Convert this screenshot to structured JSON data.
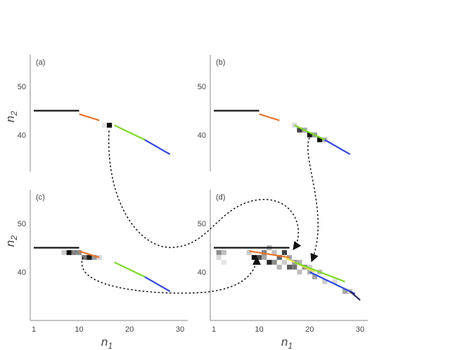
{
  "colors": {
    "black_segment": "#111111",
    "orange_segment": "#e8742a",
    "lime_segment": "#7fd82b",
    "blue_segment": "#2f48d8",
    "navy_segment": "#25255a",
    "yellow_segment": "#e8e050",
    "axis": "#888888",
    "text": "#444444"
  },
  "axis_titles": {
    "y": "n2",
    "x": "n1"
  },
  "chart_data": [
    {
      "id": "a",
      "label": "(a)",
      "type": "line",
      "xlim": [
        0,
        32
      ],
      "ylim": [
        34,
        57
      ],
      "xticks": [],
      "yticks": [
        {
          "value": 50,
          "label": "50"
        },
        {
          "value": 40,
          "label": "40"
        }
      ],
      "series": [
        {
          "color": "black",
          "x": [
            1,
            10
          ],
          "y": [
            45,
            45
          ]
        },
        {
          "color": "orange",
          "x": [
            10,
            14
          ],
          "y": [
            44.3,
            43
          ]
        },
        {
          "color": "lime",
          "x": [
            17,
            23
          ],
          "y": [
            42,
            39
          ]
        },
        {
          "color": "blue",
          "x": [
            23,
            28
          ],
          "y": [
            39,
            36
          ]
        }
      ],
      "cells": [
        {
          "x": 16,
          "y": 42,
          "shade": 0.95
        },
        {
          "x": 15,
          "y": 42,
          "shade": 0.1
        }
      ]
    },
    {
      "id": "b",
      "label": "(b)",
      "type": "line",
      "xlim": [
        0,
        32
      ],
      "ylim": [
        34,
        57
      ],
      "xticks": [],
      "yticks": [
        {
          "value": 50,
          "label": "50"
        },
        {
          "value": 40,
          "label": "40"
        }
      ],
      "series": [
        {
          "color": "black",
          "x": [
            1,
            10
          ],
          "y": [
            45,
            45
          ]
        },
        {
          "color": "orange",
          "x": [
            10,
            14
          ],
          "y": [
            44.3,
            43
          ]
        },
        {
          "color": "lime",
          "x": [
            17,
            23
          ],
          "y": [
            42,
            39
          ]
        },
        {
          "color": "blue",
          "x": [
            23,
            28
          ],
          "y": [
            39,
            36
          ]
        }
      ],
      "cells": [
        {
          "x": 17,
          "y": 42,
          "shade": 0.15
        },
        {
          "x": 18,
          "y": 41,
          "shade": 0.75
        },
        {
          "x": 19,
          "y": 41,
          "shade": 0.35
        },
        {
          "x": 20,
          "y": 40,
          "shade": 0.9
        },
        {
          "x": 21,
          "y": 40,
          "shade": 0.4
        },
        {
          "x": 22,
          "y": 39,
          "shade": 0.95
        },
        {
          "x": 23,
          "y": 39,
          "shade": 0.3
        }
      ]
    },
    {
      "id": "c",
      "label": "(c)",
      "type": "line",
      "xlim": [
        0,
        32
      ],
      "ylim": [
        34,
        57
      ],
      "xticks": [
        {
          "value": 1,
          "label": "1"
        },
        {
          "value": 10,
          "label": "10"
        },
        {
          "value": 20,
          "label": "20"
        },
        {
          "value": 30,
          "label": "30"
        }
      ],
      "yticks": [
        {
          "value": 50,
          "label": "50"
        },
        {
          "value": 40,
          "label": "40"
        }
      ],
      "series": [
        {
          "color": "black",
          "x": [
            1,
            10
          ],
          "y": [
            45,
            45
          ]
        },
        {
          "color": "orange",
          "x": [
            10,
            14
          ],
          "y": [
            44.3,
            43
          ]
        },
        {
          "color": "lime",
          "x": [
            17,
            23
          ],
          "y": [
            42,
            39
          ]
        },
        {
          "color": "blue",
          "x": [
            23,
            28
          ],
          "y": [
            39,
            36
          ]
        }
      ],
      "cells": [
        {
          "x": 7,
          "y": 44,
          "shade": 0.2
        },
        {
          "x": 8,
          "y": 44,
          "shade": 0.95
        },
        {
          "x": 9,
          "y": 44,
          "shade": 0.5
        },
        {
          "x": 10,
          "y": 44,
          "shade": 0.45
        },
        {
          "x": 11,
          "y": 43,
          "shade": 0.55
        },
        {
          "x": 12,
          "y": 43,
          "shade": 0.9
        },
        {
          "x": 13,
          "y": 43,
          "shade": 0.4
        },
        {
          "x": 14,
          "y": 43,
          "shade": 0.15
        }
      ]
    },
    {
      "id": "d",
      "label": "(d)",
      "type": "line",
      "xlim": [
        0,
        32
      ],
      "ylim": [
        34,
        57
      ],
      "xticks": [
        {
          "value": 1,
          "label": "1"
        },
        {
          "value": 10,
          "label": "10"
        },
        {
          "value": 20,
          "label": "20"
        },
        {
          "value": 30,
          "label": "30"
        }
      ],
      "yticks": [
        {
          "value": 50,
          "label": "50"
        },
        {
          "value": 40,
          "label": "40"
        }
      ],
      "series": [
        {
          "color": "black",
          "x": [
            1,
            16
          ],
          "y": [
            45,
            45
          ]
        },
        {
          "color": "orange",
          "x": [
            8,
            16
          ],
          "y": [
            44.3,
            43
          ]
        },
        {
          "color": "yellow",
          "x": [
            15,
            21
          ],
          "y": [
            43,
            40
          ]
        },
        {
          "color": "lime",
          "x": [
            17,
            27
          ],
          "y": [
            42,
            38
          ]
        },
        {
          "color": "blue",
          "x": [
            20,
            29
          ],
          "y": [
            40,
            35.5
          ]
        },
        {
          "color": "navy",
          "x": [
            28,
            30
          ],
          "y": [
            36,
            34.2
          ]
        }
      ],
      "cells": [
        {
          "x": 2,
          "y": 44,
          "shade": 0.45
        },
        {
          "x": 3,
          "y": 44,
          "shade": 0.25
        },
        {
          "x": 2,
          "y": 43,
          "shade": 0.15
        },
        {
          "x": 3,
          "y": 42,
          "shade": 0.1
        },
        {
          "x": 8,
          "y": 44,
          "shade": 0.2
        },
        {
          "x": 9,
          "y": 43,
          "shade": 0.95
        },
        {
          "x": 10,
          "y": 43,
          "shade": 0.7
        },
        {
          "x": 11,
          "y": 44,
          "shade": 0.5
        },
        {
          "x": 11,
          "y": 43,
          "shade": 0.35
        },
        {
          "x": 12,
          "y": 45,
          "shade": 0.3
        },
        {
          "x": 12,
          "y": 42,
          "shade": 0.85
        },
        {
          "x": 13,
          "y": 42,
          "shade": 0.45
        },
        {
          "x": 13,
          "y": 44,
          "shade": 0.25
        },
        {
          "x": 14,
          "y": 43,
          "shade": 0.6
        },
        {
          "x": 14,
          "y": 41,
          "shade": 0.3
        },
        {
          "x": 15,
          "y": 44,
          "shade": 0.75
        },
        {
          "x": 15,
          "y": 42,
          "shade": 0.2
        },
        {
          "x": 16,
          "y": 43,
          "shade": 0.35
        },
        {
          "x": 16,
          "y": 41,
          "shade": 0.65
        },
        {
          "x": 17,
          "y": 41,
          "shade": 0.55
        },
        {
          "x": 17,
          "y": 42,
          "shade": 0.4
        },
        {
          "x": 18,
          "y": 42,
          "shade": 0.3
        },
        {
          "x": 18,
          "y": 40,
          "shade": 0.25
        },
        {
          "x": 19,
          "y": 41,
          "shade": 0.45
        },
        {
          "x": 20,
          "y": 40,
          "shade": 0.3
        },
        {
          "x": 20,
          "y": 41,
          "shade": 0.2
        },
        {
          "x": 21,
          "y": 39,
          "shade": 0.35
        },
        {
          "x": 22,
          "y": 40,
          "shade": 0.25
        },
        {
          "x": 23,
          "y": 38,
          "shade": 0.2
        },
        {
          "x": 25,
          "y": 38,
          "shade": 0.15
        },
        {
          "x": 27,
          "y": 36,
          "shade": 0.35
        },
        {
          "x": 28,
          "y": 36,
          "shade": 0.2
        }
      ]
    }
  ]
}
